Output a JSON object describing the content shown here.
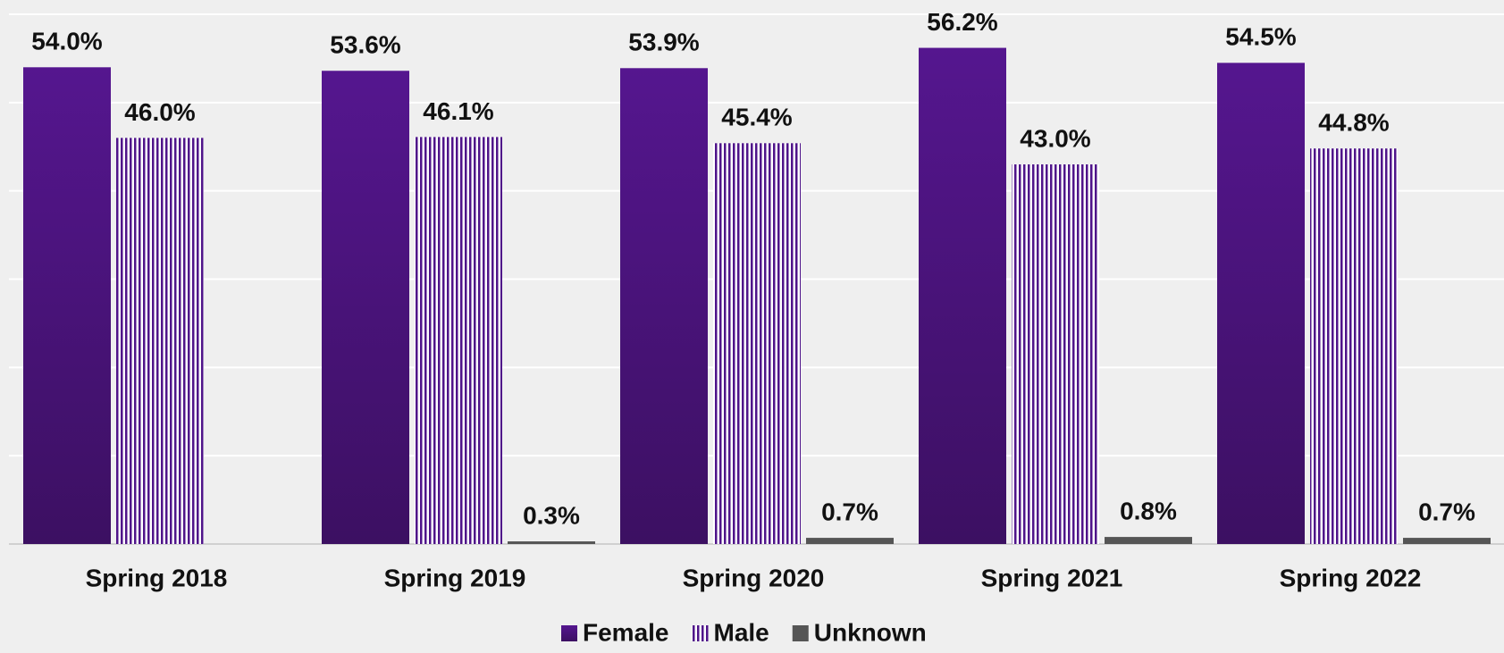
{
  "chart_data": {
    "type": "bar",
    "categories": [
      "Spring 2018",
      "Spring 2019",
      "Spring 2020",
      "Spring 2021",
      "Spring 2022"
    ],
    "series": [
      {
        "name": "Female",
        "color": "#4f148a",
        "values": [
          54.0,
          53.6,
          53.9,
          56.2,
          54.5
        ],
        "value_labels": [
          "54.0%",
          "53.6%",
          "53.9%",
          "56.2%",
          "54.5%"
        ]
      },
      {
        "name": "Male",
        "color": "#4f148a",
        "pattern": "vertical-stripes",
        "values": [
          46.0,
          46.1,
          45.4,
          43.0,
          44.8
        ],
        "value_labels": [
          "46.0%",
          "46.1%",
          "45.4%",
          "43.0%",
          "44.8%"
        ]
      },
      {
        "name": "Unknown",
        "color": "#555555",
        "values": [
          null,
          0.3,
          0.7,
          0.8,
          0.7
        ],
        "value_labels": [
          null,
          "0.3%",
          "0.7%",
          "0.8%",
          "0.7%"
        ]
      }
    ],
    "ylim": [
      0,
      60
    ],
    "yticks": [
      0,
      10,
      20,
      30,
      40,
      50,
      60
    ],
    "grid": true,
    "legend": "bottom"
  }
}
